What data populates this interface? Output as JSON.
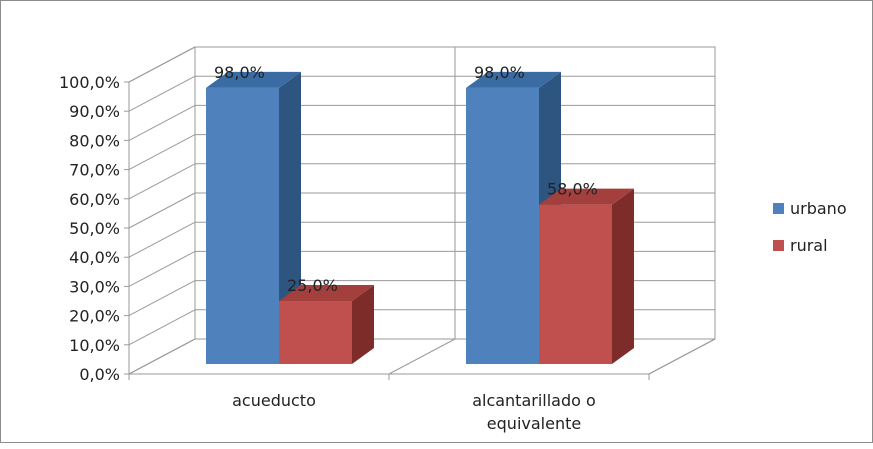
{
  "chart_data": {
    "type": "bar",
    "style": "3d-clustered-column",
    "categories": [
      "acueducto",
      "alcantarillado o equivalente"
    ],
    "category_lines": [
      [
        "acueducto"
      ],
      [
        "alcantarillado o",
        "equivalente"
      ]
    ],
    "series": [
      {
        "name": "urbano",
        "values": [
          98.0,
          98.0
        ],
        "color": "#4F81BD",
        "side_color": "#2E5480",
        "top_color": "#3A6BA3"
      },
      {
        "name": "rural",
        "values": [
          25.0,
          58.0
        ],
        "color": "#C0504D",
        "side_color": "#7E2C2A",
        "top_color": "#A33F3C"
      }
    ],
    "data_labels": [
      [
        "98,0%",
        "98,0%"
      ],
      [
        "25,0%",
        "58,0%"
      ]
    ],
    "y_ticks": [
      "0,0%",
      "10,0%",
      "20,0%",
      "30,0%",
      "40,0%",
      "50,0%",
      "60,0%",
      "70,0%",
      "80,0%",
      "90,0%",
      "100,0%"
    ],
    "ylim": [
      0,
      100
    ],
    "grid": true,
    "legend_position": "right"
  }
}
